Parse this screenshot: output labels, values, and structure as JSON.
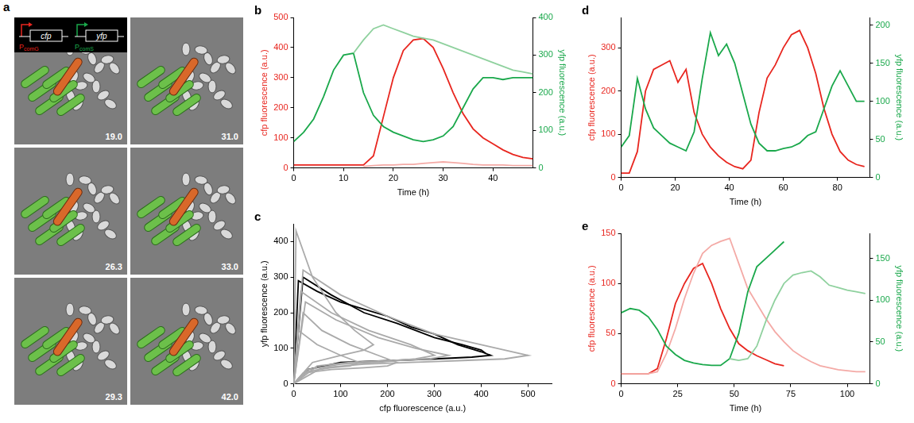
{
  "panel_a": {
    "label": "a",
    "inset": [
      {
        "gene": "cfp",
        "promoter": "PcomG",
        "color": "#e8261f"
      },
      {
        "gene": "yfp",
        "promoter": "PcomS",
        "color": "#1aa84b"
      }
    ],
    "frames": [
      "19.0",
      "31.0",
      "26.3",
      "33.0",
      "29.3",
      "42.0"
    ]
  },
  "chart_data": [
    {
      "label": "b",
      "type": "line",
      "x_label": "Time (h)",
      "y_label": "cfp fluorescence (a.u.)",
      "y2_label": "yfp fluorescence (a.u.)",
      "xlim": [
        0,
        48
      ],
      "xticks": [
        0,
        10,
        20,
        30,
        40
      ],
      "ylim": [
        0,
        500
      ],
      "yticks": [
        0,
        100,
        200,
        300,
        400,
        500
      ],
      "y2lim": [
        0,
        400
      ],
      "y2ticks": [
        0,
        100,
        200,
        300,
        400
      ],
      "grid": false,
      "series": [
        {
          "color": "#8fd19e",
          "axis": "y2",
          "x": [
            0,
            2,
            4,
            6,
            8,
            10,
            12,
            14,
            16,
            18,
            20,
            22,
            24,
            26,
            28,
            30,
            32,
            34,
            36,
            38,
            40,
            42,
            44,
            46,
            48
          ],
          "values": [
            null,
            null,
            null,
            null,
            null,
            null,
            305,
            340,
            370,
            380,
            370,
            360,
            350,
            345,
            340,
            330,
            320,
            310,
            300,
            290,
            280,
            270,
            260,
            255,
            250
          ]
        },
        {
          "color": "#1aa84b",
          "axis": "y2",
          "x": [
            0,
            2,
            4,
            6,
            8,
            10,
            12,
            14,
            16,
            18,
            20,
            22,
            24,
            26,
            28,
            30,
            32,
            34,
            36,
            38,
            40,
            42,
            44,
            46,
            48
          ],
          "values": [
            70,
            95,
            130,
            190,
            260,
            300,
            305,
            200,
            140,
            110,
            95,
            85,
            75,
            70,
            75,
            85,
            110,
            160,
            210,
            240,
            240,
            235,
            240,
            240,
            240
          ]
        },
        {
          "color": "#f4aaa6",
          "x": [
            0,
            2,
            4,
            6,
            8,
            10,
            12,
            14,
            16,
            18,
            20,
            22,
            24,
            26,
            28,
            30,
            32,
            34,
            36,
            38,
            40,
            42,
            44,
            46,
            48
          ],
          "values": [
            null,
            null,
            null,
            null,
            null,
            null,
            null,
            5,
            8,
            10,
            10,
            12,
            12,
            15,
            18,
            20,
            18,
            15,
            12,
            10,
            10,
            10,
            8,
            8,
            8
          ]
        },
        {
          "color": "#e8261f",
          "x": [
            0,
            2,
            4,
            6,
            8,
            10,
            12,
            14,
            16,
            18,
            20,
            22,
            24,
            26,
            28,
            30,
            32,
            34,
            36,
            38,
            40,
            42,
            44,
            46,
            48
          ],
          "values": [
            10,
            10,
            10,
            10,
            10,
            10,
            10,
            10,
            40,
            170,
            300,
            390,
            425,
            430,
            400,
            330,
            250,
            180,
            130,
            100,
            80,
            60,
            45,
            35,
            30
          ]
        }
      ]
    },
    {
      "label": "c",
      "type": "line",
      "x_label": "cfp fluorescence (a.u.)",
      "y_label": "yfp fluorescence (a.u.)",
      "xlim": [
        0,
        550
      ],
      "xticks": [
        0,
        100,
        200,
        300,
        400,
        500
      ],
      "ylim": [
        0,
        450
      ],
      "yticks": [
        0,
        100,
        200,
        300,
        400
      ],
      "grid": false,
      "series": [
        {
          "color": "#aaaaaa",
          "x": [
            0,
            20,
            60,
            120,
            180,
            220,
            200,
            150,
            80,
            20,
            0
          ],
          "values": [
            0,
            200,
            150,
            110,
            80,
            60,
            50,
            45,
            40,
            30,
            0
          ]
        },
        {
          "color": "#aaaaaa",
          "x": [
            0,
            15,
            80,
            160,
            250,
            300,
            260,
            180,
            100,
            30,
            0
          ],
          "values": [
            0,
            260,
            200,
            150,
            110,
            80,
            70,
            60,
            55,
            40,
            0
          ]
        },
        {
          "color": "#aaaaaa",
          "x": [
            0,
            10,
            50,
            100,
            140,
            120,
            80,
            30,
            0
          ],
          "values": [
            0,
            150,
            110,
            80,
            60,
            50,
            45,
            35,
            0
          ]
        },
        {
          "color": "#aaaaaa",
          "x": [
            0,
            20,
            100,
            200,
            300,
            400,
            450,
            500,
            450,
            350,
            250,
            150,
            60,
            0
          ],
          "values": [
            0,
            320,
            250,
            190,
            140,
            110,
            95,
            80,
            70,
            65,
            60,
            55,
            45,
            0
          ]
        },
        {
          "color": "#aaaaaa",
          "x": [
            0,
            5,
            40,
            90,
            130,
            170,
            150,
            100,
            40,
            0
          ],
          "values": [
            0,
            430,
            300,
            200,
            150,
            110,
            95,
            80,
            60,
            0
          ]
        },
        {
          "color": "#aaaaaa",
          "x": [
            0,
            25,
            90,
            180,
            260,
            330,
            290,
            200,
            120,
            50,
            0
          ],
          "values": [
            0,
            230,
            180,
            130,
            100,
            80,
            70,
            65,
            60,
            50,
            0
          ]
        },
        {
          "color": "#000000",
          "x": [
            0,
            10,
            50,
            100,
            150,
            200,
            250,
            300,
            350,
            400,
            420,
            380,
            300,
            200,
            100,
            30,
            0
          ],
          "values": [
            0,
            290,
            260,
            230,
            210,
            190,
            160,
            140,
            110,
            90,
            80,
            75,
            70,
            65,
            60,
            40,
            0
          ]
        },
        {
          "color": "#000000",
          "x": [
            0,
            20,
            80,
            150,
            220,
            300,
            360,
            400,
            410
          ],
          "values": [
            0,
            300,
            250,
            200,
            170,
            130,
            110,
            95,
            85
          ]
        }
      ]
    },
    {
      "label": "d",
      "type": "line",
      "x_label": "Time (h)",
      "y_label": "cfp fluorescence (a.u.)",
      "y2_label": "yfp fluorescence (a.u.)",
      "xlim": [
        0,
        92
      ],
      "xticks": [
        0,
        20,
        40,
        60,
        80
      ],
      "ylim": [
        0,
        370
      ],
      "yticks": [
        0,
        100,
        200,
        300
      ],
      "y2lim": [
        0,
        210
      ],
      "y2ticks": [
        0,
        50,
        100,
        150,
        200
      ],
      "grid": false,
      "series": [
        {
          "color": "#1aa84b",
          "axis": "y2",
          "x": [
            0,
            3,
            6,
            9,
            12,
            15,
            18,
            21,
            24,
            27,
            30,
            33,
            36,
            39,
            42,
            45,
            48,
            51,
            54,
            57,
            60,
            63,
            66,
            69,
            72,
            75,
            78,
            81,
            84,
            87,
            90
          ],
          "values": [
            40,
            55,
            130,
            90,
            65,
            55,
            45,
            40,
            35,
            60,
            130,
            190,
            160,
            175,
            150,
            110,
            70,
            45,
            35,
            35,
            38,
            40,
            45,
            55,
            60,
            90,
            120,
            140,
            120,
            100,
            100
          ]
        },
        {
          "color": "#e8261f",
          "x": [
            0,
            3,
            6,
            9,
            12,
            15,
            18,
            21,
            24,
            27,
            30,
            33,
            36,
            39,
            42,
            45,
            48,
            51,
            54,
            57,
            60,
            63,
            66,
            69,
            72,
            75,
            78,
            81,
            84,
            87,
            90
          ],
          "values": [
            10,
            10,
            60,
            200,
            250,
            260,
            270,
            220,
            250,
            150,
            100,
            70,
            50,
            35,
            25,
            20,
            40,
            150,
            230,
            260,
            300,
            330,
            340,
            300,
            240,
            160,
            100,
            60,
            40,
            30,
            25
          ]
        }
      ]
    },
    {
      "label": "e",
      "type": "line",
      "x_label": "Time (h)",
      "y_label": "cfp fluorescence (a.u.)",
      "y2_label": "yfp fluorescence (a.u.)",
      "xlim": [
        0,
        110
      ],
      "xticks": [
        0,
        25,
        50,
        75,
        100
      ],
      "ylim": [
        0,
        150
      ],
      "yticks": [
        0,
        50,
        100,
        150
      ],
      "y2lim": [
        0,
        180
      ],
      "y2ticks": [
        0,
        50,
        100,
        150
      ],
      "grid": false,
      "series": [
        {
          "color": "#8fd19e",
          "axis": "y2",
          "x": [
            0,
            4,
            8,
            12,
            16,
            20,
            24,
            28,
            32,
            36,
            40,
            44,
            48,
            52,
            56,
            60,
            64,
            68,
            72,
            76,
            80,
            84,
            88,
            92,
            96,
            100,
            104,
            108
          ],
          "values": [
            null,
            null,
            null,
            null,
            null,
            null,
            null,
            null,
            null,
            null,
            null,
            null,
            30,
            28,
            30,
            45,
            75,
            100,
            120,
            130,
            133,
            135,
            128,
            118,
            115,
            112,
            110,
            108
          ]
        },
        {
          "color": "#1aa84b",
          "axis": "y2",
          "x": [
            0,
            4,
            8,
            12,
            16,
            20,
            24,
            28,
            32,
            36,
            40,
            44,
            48,
            52,
            56,
            60,
            64,
            68,
            72,
            76,
            80,
            84,
            88,
            92,
            96,
            100,
            104,
            108
          ],
          "values": [
            85,
            90,
            88,
            80,
            65,
            45,
            35,
            28,
            25,
            23,
            22,
            22,
            30,
            60,
            110,
            140,
            150,
            160,
            170,
            null,
            null,
            null,
            null,
            null,
            null,
            null,
            null,
            null
          ]
        },
        {
          "color": "#f4aaa6",
          "x": [
            0,
            4,
            8,
            12,
            16,
            20,
            24,
            28,
            32,
            36,
            40,
            44,
            48,
            52,
            56,
            60,
            64,
            68,
            72,
            76,
            80,
            84,
            88,
            92,
            96,
            100,
            104,
            108
          ],
          "values": [
            10,
            10,
            10,
            10,
            12,
            30,
            55,
            85,
            110,
            130,
            138,
            142,
            145,
            120,
            95,
            80,
            65,
            52,
            42,
            33,
            27,
            22,
            18,
            16,
            14,
            13,
            12,
            12
          ]
        },
        {
          "color": "#e8261f",
          "x": [
            0,
            4,
            8,
            12,
            16,
            20,
            24,
            28,
            32,
            36,
            40,
            44,
            48,
            52,
            56,
            60,
            64,
            68,
            72,
            76,
            80,
            84,
            88,
            92,
            96,
            100,
            104,
            108
          ],
          "values": [
            10,
            10,
            10,
            10,
            15,
            45,
            80,
            100,
            115,
            120,
            100,
            75,
            55,
            40,
            33,
            28,
            24,
            20,
            18,
            null,
            null,
            null,
            null,
            null,
            null,
            null,
            null,
            null
          ]
        }
      ]
    }
  ]
}
